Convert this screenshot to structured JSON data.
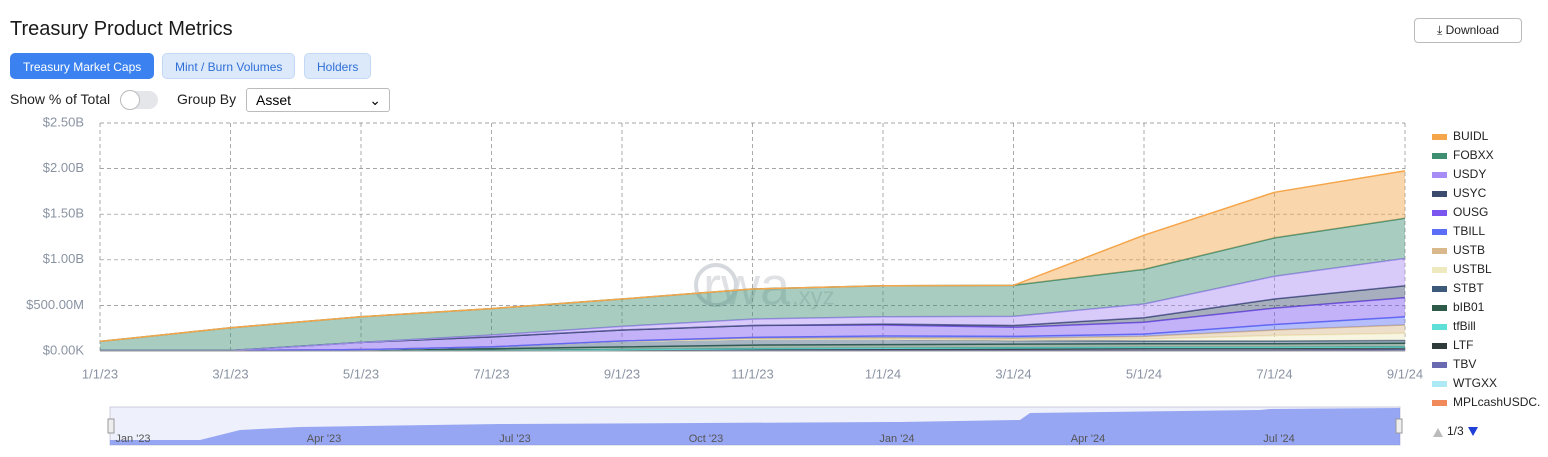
{
  "header": {
    "title": "Treasury Product Metrics",
    "download": "Download"
  },
  "tabs": [
    "Treasury Market Caps",
    "Mint / Burn Volumes",
    "Holders"
  ],
  "controls": {
    "toggle_label": "Show % of Total",
    "group_label": "Group By",
    "group_value": "Asset"
  },
  "watermark": {
    "main": "rwa",
    "suffix": ".xyz"
  },
  "navigator": {
    "labels": [
      "Jan '23",
      "Apr '23",
      "Jul '23",
      "Oct '23",
      "Jan '24",
      "Apr '24",
      "Jul '24"
    ]
  },
  "chart_data": {
    "type": "stacked-area",
    "x": [
      "1/1/23",
      "3/1/23",
      "5/1/23",
      "7/1/23",
      "9/1/23",
      "11/1/23",
      "1/1/24",
      "3/1/24",
      "5/1/24",
      "7/1/24",
      "9/1/24"
    ],
    "ylim": [
      0,
      2500000000
    ],
    "yticks": [
      {
        "value": 0,
        "label": "$0.00K"
      },
      {
        "value": 500000000,
        "label": "$500.00M"
      },
      {
        "value": 1000000000,
        "label": "$1.00B"
      },
      {
        "value": 1500000000,
        "label": "$1.50B"
      },
      {
        "value": 2000000000,
        "label": "$2.00B"
      },
      {
        "value": 2500000000,
        "label": "$2.50B"
      }
    ],
    "grid": true,
    "legend_page": "1/3",
    "series": [
      {
        "name": "BUIDL",
        "color": "#f5a54a",
        "values": [
          0,
          0,
          0,
          0,
          0,
          0,
          0,
          0,
          375000000,
          500000000,
          520000000
        ]
      },
      {
        "name": "FOBXX",
        "color": "#3f8f73",
        "values": [
          100000000,
          250000000,
          280000000,
          290000000,
          300000000,
          330000000,
          340000000,
          340000000,
          380000000,
          420000000,
          440000000
        ]
      },
      {
        "name": "USDY",
        "color": "#a88cf5",
        "values": [
          0,
          0,
          0,
          20000000,
          40000000,
          70000000,
          80000000,
          100000000,
          150000000,
          250000000,
          300000000
        ]
      },
      {
        "name": "USYC",
        "color": "#3b4b6e",
        "values": [
          0,
          0,
          0,
          0,
          0,
          0,
          10000000,
          20000000,
          50000000,
          100000000,
          130000000
        ]
      },
      {
        "name": "OUSG",
        "color": "#7a55f0",
        "values": [
          0,
          0,
          80000000,
          110000000,
          120000000,
          130000000,
          120000000,
          100000000,
          130000000,
          180000000,
          210000000
        ]
      },
      {
        "name": "TBILL",
        "color": "#5b6ef5",
        "values": [
          0,
          0,
          0,
          0,
          0,
          10000000,
          20000000,
          20000000,
          25000000,
          60000000,
          90000000
        ]
      },
      {
        "name": "USTB",
        "color": "#d9b98c",
        "values": [
          0,
          0,
          0,
          0,
          5000000,
          10000000,
          15000000,
          20000000,
          30000000,
          60000000,
          90000000
        ]
      },
      {
        "name": "USTBL",
        "color": "#efe9c0",
        "values": [
          0,
          0,
          0,
          0,
          0,
          0,
          0,
          5000000,
          20000000,
          60000000,
          80000000
        ]
      },
      {
        "name": "STBT",
        "color": "#3e5a7a",
        "values": [
          0,
          0,
          0,
          20000000,
          60000000,
          65000000,
          60000000,
          40000000,
          30000000,
          30000000,
          30000000
        ]
      },
      {
        "name": "bIB01",
        "color": "#2e5a4a",
        "values": [
          0,
          0,
          10000000,
          20000000,
          30000000,
          40000000,
          40000000,
          40000000,
          40000000,
          40000000,
          40000000
        ]
      },
      {
        "name": "tfBill",
        "color": "#5ee0d8",
        "values": [
          0,
          0,
          0,
          0,
          0,
          5000000,
          5000000,
          10000000,
          10000000,
          10000000,
          10000000
        ]
      },
      {
        "name": "LTF",
        "color": "#2f3b3a",
        "values": [
          0,
          0,
          0,
          0,
          5000000,
          10000000,
          15000000,
          15000000,
          20000000,
          20000000,
          20000000
        ]
      },
      {
        "name": "TBV",
        "color": "#6a6ab0",
        "values": [
          0,
          0,
          0,
          0,
          5000000,
          5000000,
          5000000,
          5000000,
          5000000,
          5000000,
          5000000
        ]
      },
      {
        "name": "WTGXX",
        "color": "#aeeaf5",
        "values": [
          0,
          0,
          0,
          0,
          0,
          0,
          0,
          0,
          0,
          0,
          5000000
        ]
      },
      {
        "name": "MPLcashUSDC.",
        "color": "#f08a5a",
        "values": [
          5000000,
          5000000,
          5000000,
          5000000,
          5000000,
          5000000,
          5000000,
          5000000,
          5000000,
          5000000,
          5000000
        ]
      }
    ]
  }
}
